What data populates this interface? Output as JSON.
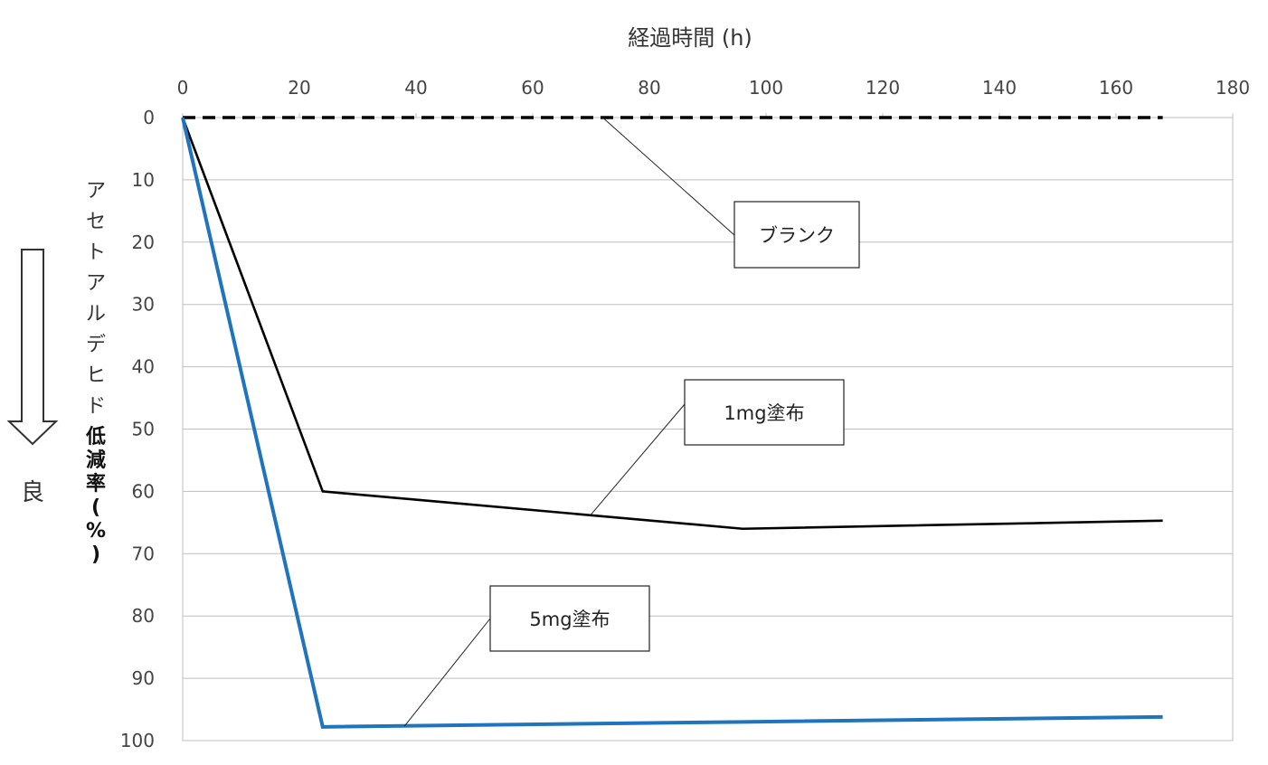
{
  "chart_data": {
    "type": "line",
    "xlabel": "経過時間 (h)",
    "ylabel": "アセトアルデヒド低減率(%)",
    "xlim": [
      0,
      180
    ],
    "ylim": [
      0,
      100
    ],
    "y_reversed": true,
    "x_axis_position": "top",
    "x_ticks": [
      0,
      20,
      40,
      60,
      80,
      100,
      120,
      140,
      160,
      180
    ],
    "y_ticks": [
      0,
      10,
      20,
      30,
      40,
      50,
      60,
      70,
      80,
      90,
      100
    ],
    "grid": "horizontal",
    "legend": "none",
    "series": [
      {
        "name": "ブランク",
        "x": [
          0,
          24,
          96,
          168
        ],
        "y": [
          0,
          0,
          0,
          0
        ],
        "color": "#000000",
        "style": "dashed"
      },
      {
        "name": "1mg塗布",
        "x": [
          0,
          24,
          96,
          168
        ],
        "y": [
          0,
          60,
          66,
          64.7
        ],
        "color": "#000000",
        "style": "solid"
      },
      {
        "name": "5mg塗布",
        "x": [
          0,
          24,
          96,
          168
        ],
        "y": [
          0,
          97.8,
          97,
          96.2
        ],
        "color": "#1f74bd",
        "style": "solid"
      }
    ],
    "annotations": [
      {
        "text": "ブランク",
        "series": 0,
        "point_x": 72,
        "point_y": 0
      },
      {
        "text": "1mg塗布",
        "series": 1,
        "point_x": 70,
        "point_y": 63.7
      },
      {
        "text": "5mg塗布",
        "series": 2,
        "point_x": 38,
        "point_y": 97.7
      }
    ],
    "side_label": "良"
  }
}
